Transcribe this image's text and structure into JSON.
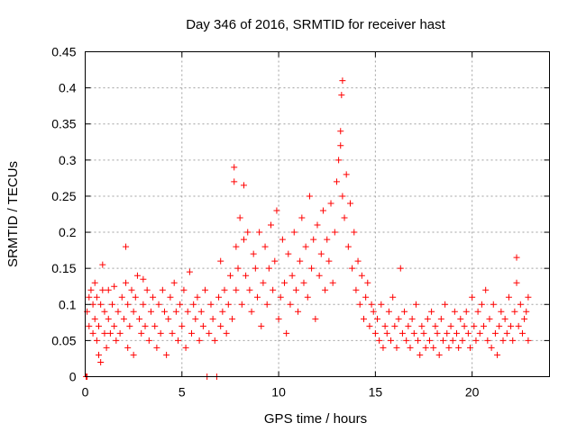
{
  "chart_data": {
    "type": "scatter",
    "title": "Day 346 of 2016, SRMTID for receiver hast",
    "xlabel": "GPS time / hours",
    "ylabel": "SRMTID / TECUs",
    "xlim": [
      0,
      24
    ],
    "ylim": [
      0,
      0.45
    ],
    "xticks": [
      0,
      5,
      10,
      15,
      20
    ],
    "xtick_labels": [
      "0",
      "5",
      "10",
      "15",
      "20"
    ],
    "yticks": [
      0,
      0.05,
      0.1,
      0.15,
      0.2,
      0.25,
      0.3,
      0.35,
      0.4,
      0.45
    ],
    "ytick_labels": [
      "0",
      "0.05",
      "0.1",
      "0.15",
      "0.2",
      "0.25",
      "0.3",
      "0.35",
      "0.4",
      "0.45"
    ],
    "grid": true,
    "marker": "plus",
    "color": "#ff0000",
    "series": [
      {
        "name": "SRMTID",
        "points": [
          [
            0.05,
            0.0
          ],
          [
            0.1,
            0.0
          ],
          [
            0.1,
            0.09
          ],
          [
            0.2,
            0.11
          ],
          [
            0.2,
            0.07
          ],
          [
            0.3,
            0.12
          ],
          [
            0.4,
            0.1
          ],
          [
            0.4,
            0.06
          ],
          [
            0.5,
            0.13
          ],
          [
            0.5,
            0.08
          ],
          [
            0.6,
            0.05
          ],
          [
            0.6,
            0.11
          ],
          [
            0.7,
            0.03
          ],
          [
            0.7,
            0.07
          ],
          [
            0.8,
            0.02
          ],
          [
            0.8,
            0.1
          ],
          [
            0.9,
            0.155
          ],
          [
            0.9,
            0.12
          ],
          [
            1.0,
            0.06
          ],
          [
            1.0,
            0.09
          ],
          [
            1.1,
            0.04
          ],
          [
            1.2,
            0.08
          ],
          [
            1.2,
            0.12
          ],
          [
            1.3,
            0.06
          ],
          [
            1.4,
            0.1
          ],
          [
            1.5,
            0.07
          ],
          [
            1.5,
            0.125
          ],
          [
            1.6,
            0.05
          ],
          [
            1.7,
            0.09
          ],
          [
            1.8,
            0.06
          ],
          [
            1.9,
            0.11
          ],
          [
            2.0,
            0.08
          ],
          [
            2.1,
            0.18
          ],
          [
            2.1,
            0.13
          ],
          [
            2.2,
            0.1
          ],
          [
            2.2,
            0.04
          ],
          [
            2.3,
            0.07
          ],
          [
            2.4,
            0.12
          ],
          [
            2.5,
            0.09
          ],
          [
            2.5,
            0.03
          ],
          [
            2.6,
            0.11
          ],
          [
            2.7,
            0.14
          ],
          [
            2.8,
            0.08
          ],
          [
            2.9,
            0.06
          ],
          [
            3.0,
            0.135
          ],
          [
            3.0,
            0.1
          ],
          [
            3.1,
            0.07
          ],
          [
            3.2,
            0.12
          ],
          [
            3.3,
            0.05
          ],
          [
            3.4,
            0.09
          ],
          [
            3.5,
            0.11
          ],
          [
            3.6,
            0.07
          ],
          [
            3.7,
            0.04
          ],
          [
            3.8,
            0.1
          ],
          [
            3.9,
            0.06
          ],
          [
            4.0,
            0.12
          ],
          [
            4.1,
            0.09
          ],
          [
            4.2,
            0.03
          ],
          [
            4.3,
            0.08
          ],
          [
            4.4,
            0.11
          ],
          [
            4.5,
            0.06
          ],
          [
            4.6,
            0.13
          ],
          [
            4.7,
            0.09
          ],
          [
            4.8,
            0.05
          ],
          [
            4.9,
            0.1
          ],
          [
            5.0,
            0.07
          ],
          [
            5.1,
            0.12
          ],
          [
            5.2,
            0.04
          ],
          [
            5.3,
            0.09
          ],
          [
            5.4,
            0.145
          ],
          [
            5.5,
            0.06
          ],
          [
            5.6,
            0.1
          ],
          [
            5.7,
            0.08
          ],
          [
            5.8,
            0.11
          ],
          [
            5.9,
            0.05
          ],
          [
            6.0,
            0.09
          ],
          [
            6.1,
            0.07
          ],
          [
            6.2,
            0.12
          ],
          [
            6.3,
            0.0
          ],
          [
            6.4,
            0.06
          ],
          [
            6.5,
            0.1
          ],
          [
            6.6,
            0.08
          ],
          [
            6.7,
            0.05
          ],
          [
            6.8,
            0.0
          ],
          [
            6.9,
            0.11
          ],
          [
            7.0,
            0.07
          ],
          [
            7.0,
            0.16
          ],
          [
            7.1,
            0.09
          ],
          [
            7.2,
            0.12
          ],
          [
            7.3,
            0.06
          ],
          [
            7.4,
            0.1
          ],
          [
            7.5,
            0.14
          ],
          [
            7.6,
            0.08
          ],
          [
            7.7,
            0.29
          ],
          [
            7.7,
            0.27
          ],
          [
            7.8,
            0.18
          ],
          [
            7.8,
            0.12
          ],
          [
            7.9,
            0.15
          ],
          [
            8.0,
            0.22
          ],
          [
            8.1,
            0.1
          ],
          [
            8.2,
            0.265
          ],
          [
            8.2,
            0.19
          ],
          [
            8.3,
            0.14
          ],
          [
            8.4,
            0.2
          ],
          [
            8.5,
            0.12
          ],
          [
            8.6,
            0.09
          ],
          [
            8.7,
            0.17
          ],
          [
            8.8,
            0.15
          ],
          [
            8.9,
            0.11
          ],
          [
            9.0,
            0.2
          ],
          [
            9.1,
            0.07
          ],
          [
            9.2,
            0.13
          ],
          [
            9.3,
            0.18
          ],
          [
            9.4,
            0.1
          ],
          [
            9.5,
            0.15
          ],
          [
            9.6,
            0.21
          ],
          [
            9.7,
            0.12
          ],
          [
            9.8,
            0.16
          ],
          [
            9.9,
            0.23
          ],
          [
            10.0,
            0.08
          ],
          [
            10.1,
            0.11
          ],
          [
            10.2,
            0.19
          ],
          [
            10.3,
            0.13
          ],
          [
            10.4,
            0.06
          ],
          [
            10.5,
            0.17
          ],
          [
            10.6,
            0.1
          ],
          [
            10.7,
            0.14
          ],
          [
            10.8,
            0.2
          ],
          [
            10.9,
            0.12
          ],
          [
            11.0,
            0.09
          ],
          [
            11.1,
            0.16
          ],
          [
            11.2,
            0.22
          ],
          [
            11.3,
            0.13
          ],
          [
            11.4,
            0.18
          ],
          [
            11.5,
            0.11
          ],
          [
            11.6,
            0.25
          ],
          [
            11.7,
            0.15
          ],
          [
            11.8,
            0.19
          ],
          [
            11.9,
            0.08
          ],
          [
            12.0,
            0.21
          ],
          [
            12.1,
            0.14
          ],
          [
            12.2,
            0.17
          ],
          [
            12.3,
            0.23
          ],
          [
            12.4,
            0.12
          ],
          [
            12.5,
            0.19
          ],
          [
            12.6,
            0.16
          ],
          [
            12.7,
            0.24
          ],
          [
            12.8,
            0.13
          ],
          [
            12.9,
            0.2
          ],
          [
            13.0,
            0.27
          ],
          [
            13.1,
            0.3
          ],
          [
            13.2,
            0.34
          ],
          [
            13.2,
            0.32
          ],
          [
            13.25,
            0.39
          ],
          [
            13.3,
            0.41
          ],
          [
            13.3,
            0.25
          ],
          [
            13.4,
            0.22
          ],
          [
            13.5,
            0.28
          ],
          [
            13.6,
            0.18
          ],
          [
            13.7,
            0.24
          ],
          [
            13.8,
            0.15
          ],
          [
            13.9,
            0.2
          ],
          [
            14.0,
            0.12
          ],
          [
            14.1,
            0.16
          ],
          [
            14.2,
            0.1
          ],
          [
            14.3,
            0.14
          ],
          [
            14.4,
            0.08
          ],
          [
            14.5,
            0.11
          ],
          [
            14.6,
            0.13
          ],
          [
            14.7,
            0.07
          ],
          [
            14.8,
            0.1
          ],
          [
            14.9,
            0.09
          ],
          [
            15.0,
            0.06
          ],
          [
            15.1,
            0.08
          ],
          [
            15.2,
            0.05
          ],
          [
            15.3,
            0.1
          ],
          [
            15.4,
            0.04
          ],
          [
            15.5,
            0.07
          ],
          [
            15.6,
            0.06
          ],
          [
            15.7,
            0.09
          ],
          [
            15.8,
            0.05
          ],
          [
            15.9,
            0.11
          ],
          [
            16.0,
            0.07
          ],
          [
            16.1,
            0.04
          ],
          [
            16.2,
            0.08
          ],
          [
            16.3,
            0.15
          ],
          [
            16.4,
            0.06
          ],
          [
            16.5,
            0.09
          ],
          [
            16.6,
            0.05
          ],
          [
            16.7,
            0.07
          ],
          [
            16.8,
            0.04
          ],
          [
            16.9,
            0.08
          ],
          [
            17.0,
            0.06
          ],
          [
            17.1,
            0.1
          ],
          [
            17.2,
            0.05
          ],
          [
            17.3,
            0.03
          ],
          [
            17.4,
            0.07
          ],
          [
            17.5,
            0.06
          ],
          [
            17.6,
            0.04
          ],
          [
            17.7,
            0.08
          ],
          [
            17.8,
            0.05
          ],
          [
            17.9,
            0.09
          ],
          [
            18.0,
            0.04
          ],
          [
            18.1,
            0.07
          ],
          [
            18.2,
            0.06
          ],
          [
            18.3,
            0.03
          ],
          [
            18.4,
            0.08
          ],
          [
            18.5,
            0.05
          ],
          [
            18.6,
            0.1
          ],
          [
            18.7,
            0.06
          ],
          [
            18.8,
            0.04
          ],
          [
            18.9,
            0.07
          ],
          [
            19.0,
            0.05
          ],
          [
            19.1,
            0.09
          ],
          [
            19.2,
            0.06
          ],
          [
            19.3,
            0.04
          ],
          [
            19.4,
            0.08
          ],
          [
            19.5,
            0.05
          ],
          [
            19.6,
            0.07
          ],
          [
            19.7,
            0.09
          ],
          [
            19.8,
            0.06
          ],
          [
            19.9,
            0.04
          ],
          [
            20.0,
            0.11
          ],
          [
            20.1,
            0.07
          ],
          [
            20.2,
            0.05
          ],
          [
            20.3,
            0.09
          ],
          [
            20.4,
            0.06
          ],
          [
            20.5,
            0.1
          ],
          [
            20.6,
            0.07
          ],
          [
            20.7,
            0.12
          ],
          [
            20.8,
            0.05
          ],
          [
            20.9,
            0.08
          ],
          [
            21.0,
            0.04
          ],
          [
            21.1,
            0.1
          ],
          [
            21.2,
            0.06
          ],
          [
            21.3,
            0.03
          ],
          [
            21.4,
            0.07
          ],
          [
            21.5,
            0.09
          ],
          [
            21.6,
            0.05
          ],
          [
            21.7,
            0.08
          ],
          [
            21.8,
            0.06
          ],
          [
            21.9,
            0.11
          ],
          [
            22.0,
            0.07
          ],
          [
            22.1,
            0.05
          ],
          [
            22.2,
            0.09
          ],
          [
            22.3,
            0.13
          ],
          [
            22.3,
            0.165
          ],
          [
            22.4,
            0.07
          ],
          [
            22.5,
            0.1
          ],
          [
            22.6,
            0.06
          ],
          [
            22.7,
            0.08
          ],
          [
            22.8,
            0.09
          ],
          [
            22.9,
            0.05
          ],
          [
            22.9,
            0.11
          ]
        ]
      }
    ]
  }
}
